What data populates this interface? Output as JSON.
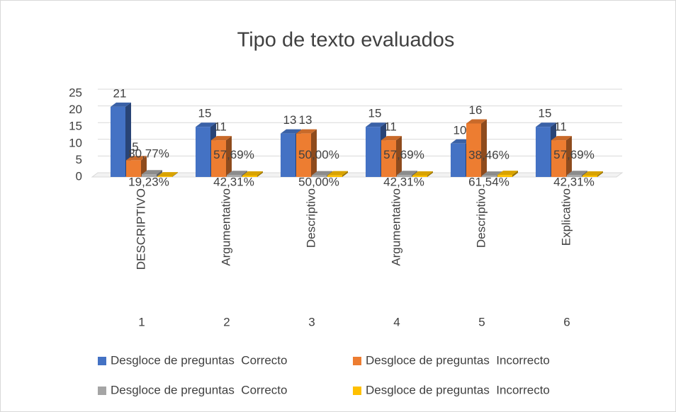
{
  "chart_data": {
    "type": "bar3d",
    "title": "Tipo de texto evaluados",
    "categories": [
      "1",
      "2",
      "3",
      "4",
      "5",
      "6"
    ],
    "category_labels": [
      "DESCRIPTIVO",
      "Argumentativo",
      "Descriptivo",
      "Argumentativo",
      "Descriptivo",
      "Explicativo"
    ],
    "series": [
      {
        "name": "Desgloce de preguntas  Correcto",
        "color": "#4472c4",
        "values": [
          21,
          15,
          13,
          15,
          10,
          15
        ]
      },
      {
        "name": "Desgloce de preguntas  Incorrecto",
        "color": "#ed7d31",
        "values": [
          5,
          11,
          13,
          11,
          16,
          11
        ]
      },
      {
        "name": "Desgloce de preguntas  Correcto",
        "color": "#a5a5a5",
        "values": [
          0.8077,
          0.5769,
          0.5,
          0.5769,
          0.3846,
          0.5769
        ],
        "value_labels": [
          "80,77%",
          "57,69%",
          "50,00%",
          "57,69%",
          "38,46%",
          "57,69%"
        ]
      },
      {
        "name": "Desgloce de preguntas  Incorrecto",
        "color": "#ffc000",
        "values": [
          0.1923,
          0.4231,
          0.5,
          0.4231,
          0.6154,
          0.4231
        ],
        "value_labels": [
          "19,23%",
          "42,31%",
          "50,00%",
          "42,31%",
          "61,54%",
          "42,31%"
        ]
      }
    ],
    "ylim": [
      0,
      25
    ],
    "yticks": [
      0,
      5,
      10,
      15,
      20,
      25
    ],
    "grid": true
  }
}
